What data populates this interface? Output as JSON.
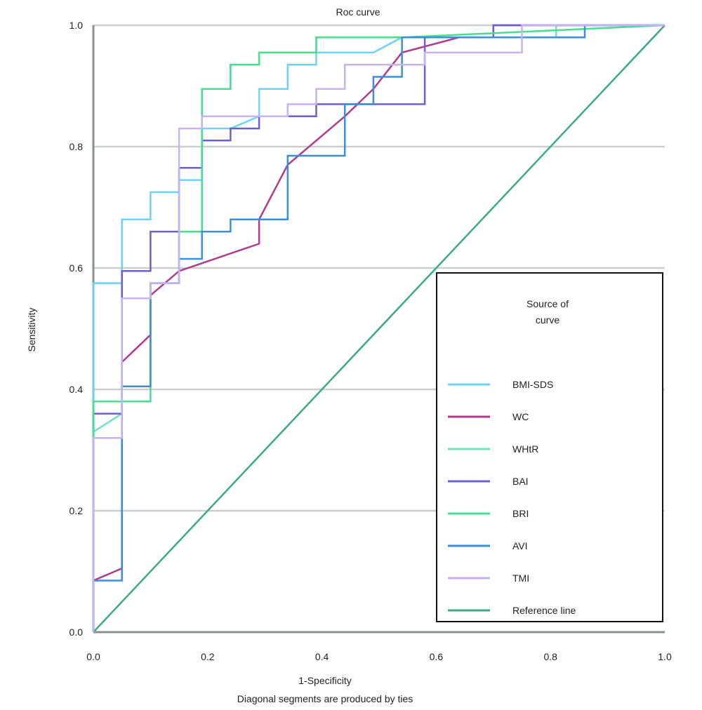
{
  "chart_data": {
    "type": "line",
    "title": "Roc curve",
    "xlabel": "1-Specificity",
    "xlabel_note": "Diagonal segments are produced by ties",
    "ylabel": "Sensitivity",
    "xlim": [
      0,
      1
    ],
    "ylim": [
      0,
      1
    ],
    "xticks": [
      "0.0",
      "0.2",
      "0.4",
      "0.6",
      "0.8",
      "1.0"
    ],
    "yticks": [
      "0.0",
      "0.2",
      "0.4",
      "0.6",
      "0.8",
      "1.0"
    ],
    "grid": "horizontal",
    "legend": {
      "title_line1": "Source of",
      "title_line2": "curve",
      "position": "bottom-right"
    },
    "series": [
      {
        "name": "BMI-SDS",
        "color": "#6ed3f2",
        "points": [
          [
            0,
            0
          ],
          [
            0,
            0.575
          ],
          [
            0.05,
            0.575
          ],
          [
            0.05,
            0.68
          ],
          [
            0.1,
            0.68
          ],
          [
            0.1,
            0.725
          ],
          [
            0.15,
            0.725
          ],
          [
            0.15,
            0.745
          ],
          [
            0.19,
            0.745
          ],
          [
            0.19,
            0.83
          ],
          [
            0.24,
            0.83
          ],
          [
            0.29,
            0.85
          ],
          [
            0.29,
            0.895
          ],
          [
            0.34,
            0.895
          ],
          [
            0.34,
            0.935
          ],
          [
            0.39,
            0.935
          ],
          [
            0.39,
            0.955
          ],
          [
            0.49,
            0.955
          ],
          [
            0.54,
            0.98
          ],
          [
            0.81,
            0.98
          ],
          [
            0.81,
            1.0
          ],
          [
            1,
            1
          ]
        ]
      },
      {
        "name": "WC",
        "color": "#b03a8e",
        "points": [
          [
            0,
            0.085
          ],
          [
            0.05,
            0.105
          ],
          [
            0.05,
            0.445
          ],
          [
            0.1,
            0.49
          ],
          [
            0.1,
            0.555
          ],
          [
            0.15,
            0.595
          ],
          [
            0.29,
            0.64
          ],
          [
            0.29,
            0.68
          ],
          [
            0.34,
            0.77
          ],
          [
            0.44,
            0.85
          ],
          [
            0.49,
            0.895
          ],
          [
            0.54,
            0.955
          ],
          [
            0.64,
            0.98
          ],
          [
            0.7,
            0.98
          ],
          [
            0.7,
            1.0
          ],
          [
            1,
            1
          ]
        ]
      },
      {
        "name": "WHtR",
        "color": "#6fe0c4",
        "points": [
          [
            0,
            0
          ],
          [
            0,
            0.33
          ],
          [
            0.05,
            0.36
          ],
          [
            0.05,
            0.55
          ],
          [
            0.1,
            0.55
          ],
          [
            0.1,
            0.575
          ],
          [
            0.15,
            0.575
          ],
          [
            0.15,
            0.66
          ],
          [
            0.19,
            0.66
          ],
          [
            0.19,
            0.895
          ],
          [
            0.24,
            0.895
          ],
          [
            0.24,
            0.935
          ],
          [
            0.29,
            0.935
          ],
          [
            0.29,
            0.955
          ],
          [
            0.39,
            0.955
          ],
          [
            0.39,
            0.98
          ],
          [
            0.54,
            0.98
          ],
          [
            0.81,
            0.98
          ],
          [
            0.81,
            1.0
          ],
          [
            1,
            1
          ]
        ]
      },
      {
        "name": "BAI",
        "color": "#6b5fd1",
        "points": [
          [
            0,
            0
          ],
          [
            0,
            0.36
          ],
          [
            0.05,
            0.36
          ],
          [
            0.05,
            0.595
          ],
          [
            0.1,
            0.595
          ],
          [
            0.1,
            0.66
          ],
          [
            0.15,
            0.66
          ],
          [
            0.15,
            0.765
          ],
          [
            0.19,
            0.765
          ],
          [
            0.19,
            0.81
          ],
          [
            0.24,
            0.81
          ],
          [
            0.24,
            0.83
          ],
          [
            0.29,
            0.83
          ],
          [
            0.29,
            0.85
          ],
          [
            0.39,
            0.85
          ],
          [
            0.39,
            0.87
          ],
          [
            0.54,
            0.87
          ],
          [
            0.54,
            0.87
          ],
          [
            0.54,
            0.87
          ],
          [
            0.58,
            0.87
          ],
          [
            0.58,
            0.895
          ],
          [
            0.58,
            0.98
          ],
          [
            0.7,
            0.98
          ],
          [
            0.7,
            1.0
          ],
          [
            1,
            1
          ]
        ]
      },
      {
        "name": "BRI",
        "color": "#44e08e",
        "points": [
          [
            0,
            0
          ],
          [
            0,
            0.38
          ],
          [
            0.1,
            0.38
          ],
          [
            0.1,
            0.4
          ],
          [
            0.1,
            0.575
          ],
          [
            0.15,
            0.575
          ],
          [
            0.15,
            0.66
          ],
          [
            0.19,
            0.66
          ],
          [
            0.19,
            0.895
          ],
          [
            0.24,
            0.895
          ],
          [
            0.24,
            0.935
          ],
          [
            0.29,
            0.935
          ],
          [
            0.29,
            0.955
          ],
          [
            0.39,
            0.955
          ],
          [
            0.39,
            0.98
          ],
          [
            0.54,
            0.98
          ],
          [
            1,
            1
          ]
        ]
      },
      {
        "name": "AVI",
        "color": "#3b8fd9",
        "points": [
          [
            0,
            0
          ],
          [
            0,
            0.085
          ],
          [
            0.05,
            0.085
          ],
          [
            0.05,
            0.405
          ],
          [
            0.1,
            0.405
          ],
          [
            0.1,
            0.575
          ],
          [
            0.15,
            0.575
          ],
          [
            0.15,
            0.615
          ],
          [
            0.19,
            0.615
          ],
          [
            0.19,
            0.66
          ],
          [
            0.24,
            0.66
          ],
          [
            0.24,
            0.68
          ],
          [
            0.34,
            0.68
          ],
          [
            0.34,
            0.785
          ],
          [
            0.44,
            0.785
          ],
          [
            0.44,
            0.87
          ],
          [
            0.49,
            0.87
          ],
          [
            0.49,
            0.915
          ],
          [
            0.54,
            0.915
          ],
          [
            0.54,
            0.98
          ],
          [
            0.86,
            0.98
          ],
          [
            0.86,
            1.0
          ],
          [
            1,
            1
          ]
        ]
      },
      {
        "name": "TMI",
        "color": "#c9b3ee",
        "points": [
          [
            0,
            0
          ],
          [
            0,
            0.32
          ],
          [
            0.05,
            0.32
          ],
          [
            0.05,
            0.55
          ],
          [
            0.1,
            0.55
          ],
          [
            0.1,
            0.575
          ],
          [
            0.15,
            0.575
          ],
          [
            0.15,
            0.83
          ],
          [
            0.19,
            0.83
          ],
          [
            0.19,
            0.85
          ],
          [
            0.34,
            0.85
          ],
          [
            0.34,
            0.87
          ],
          [
            0.39,
            0.87
          ],
          [
            0.39,
            0.895
          ],
          [
            0.44,
            0.895
          ],
          [
            0.44,
            0.935
          ],
          [
            0.58,
            0.935
          ],
          [
            0.58,
            0.955
          ],
          [
            0.75,
            0.955
          ],
          [
            0.75,
            1.0
          ],
          [
            1,
            1
          ]
        ]
      },
      {
        "name": "Reference line",
        "color": "#3aaa8a",
        "points": [
          [
            0,
            0
          ],
          [
            1,
            1
          ]
        ]
      }
    ]
  }
}
